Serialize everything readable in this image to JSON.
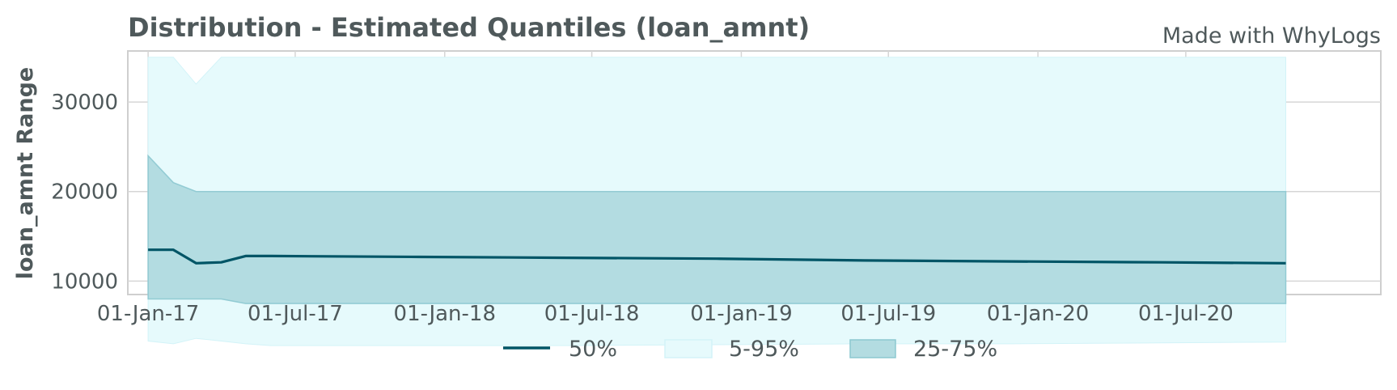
{
  "chart_data": {
    "type": "area",
    "title": "Distribution - Estimated Quantiles (loan_amnt)",
    "watermark": "Made with WhyLogs",
    "xlabel": "",
    "ylabel": "loan_amnt Range",
    "x_ticks": [
      "01-Jan-17",
      "01-Jul-17",
      "01-Jan-18",
      "01-Jul-18",
      "01-Jan-19",
      "01-Jul-19",
      "01-Jan-20",
      "01-Jul-20"
    ],
    "x_tick_dates": [
      "2017-01-01",
      "2017-07-01",
      "2018-01-01",
      "2018-07-01",
      "2019-01-01",
      "2019-07-01",
      "2020-01-01",
      "2020-07-01"
    ],
    "xlim": [
      "2016-12-07",
      "2021-02-26"
    ],
    "y_ticks": [
      10000,
      20000,
      30000
    ],
    "ylim": [
      8500,
      35700
    ],
    "grid": true,
    "legend_position": "bottom",
    "legend": [
      {
        "label": "50%",
        "kind": "line",
        "color": "#005566"
      },
      {
        "label": "5-95%",
        "kind": "band",
        "color": "#e6fafc",
        "edge": "#d3f3f8"
      },
      {
        "label": "25-75%",
        "kind": "band",
        "color": "#b3dce1",
        "edge": "#8cc8d0"
      }
    ],
    "x": [
      "2017-01-01",
      "2017-02-01",
      "2017-03-01",
      "2017-04-01",
      "2017-05-01",
      "2017-06-01",
      "2017-12-01",
      "2018-06-01",
      "2018-12-01",
      "2019-06-01",
      "2019-12-01",
      "2020-06-01",
      "2020-11-01"
    ],
    "series": [
      {
        "name": "5%",
        "values": [
          3300,
          3000,
          3600,
          3300,
          3000,
          2800,
          2800,
          2800,
          2900,
          3000,
          3000,
          3100,
          3200
        ]
      },
      {
        "name": "25%",
        "values": [
          8000,
          8000,
          8000,
          8000,
          7500,
          7500,
          7500,
          7500,
          7500,
          7500,
          7500,
          7500,
          7500
        ]
      },
      {
        "name": "50%",
        "values": [
          13500,
          13500,
          12000,
          12100,
          12800,
          12800,
          12700,
          12600,
          12500,
          12300,
          12200,
          12100,
          12000
        ]
      },
      {
        "name": "75%",
        "values": [
          24000,
          21000,
          20000,
          20000,
          20000,
          20000,
          20000,
          20000,
          20000,
          20000,
          20000,
          20000,
          20000
        ]
      },
      {
        "name": "95%",
        "values": [
          35000,
          35000,
          32000,
          35000,
          35000,
          35000,
          35000,
          35000,
          35000,
          35000,
          35000,
          35000,
          35000
        ]
      }
    ]
  }
}
